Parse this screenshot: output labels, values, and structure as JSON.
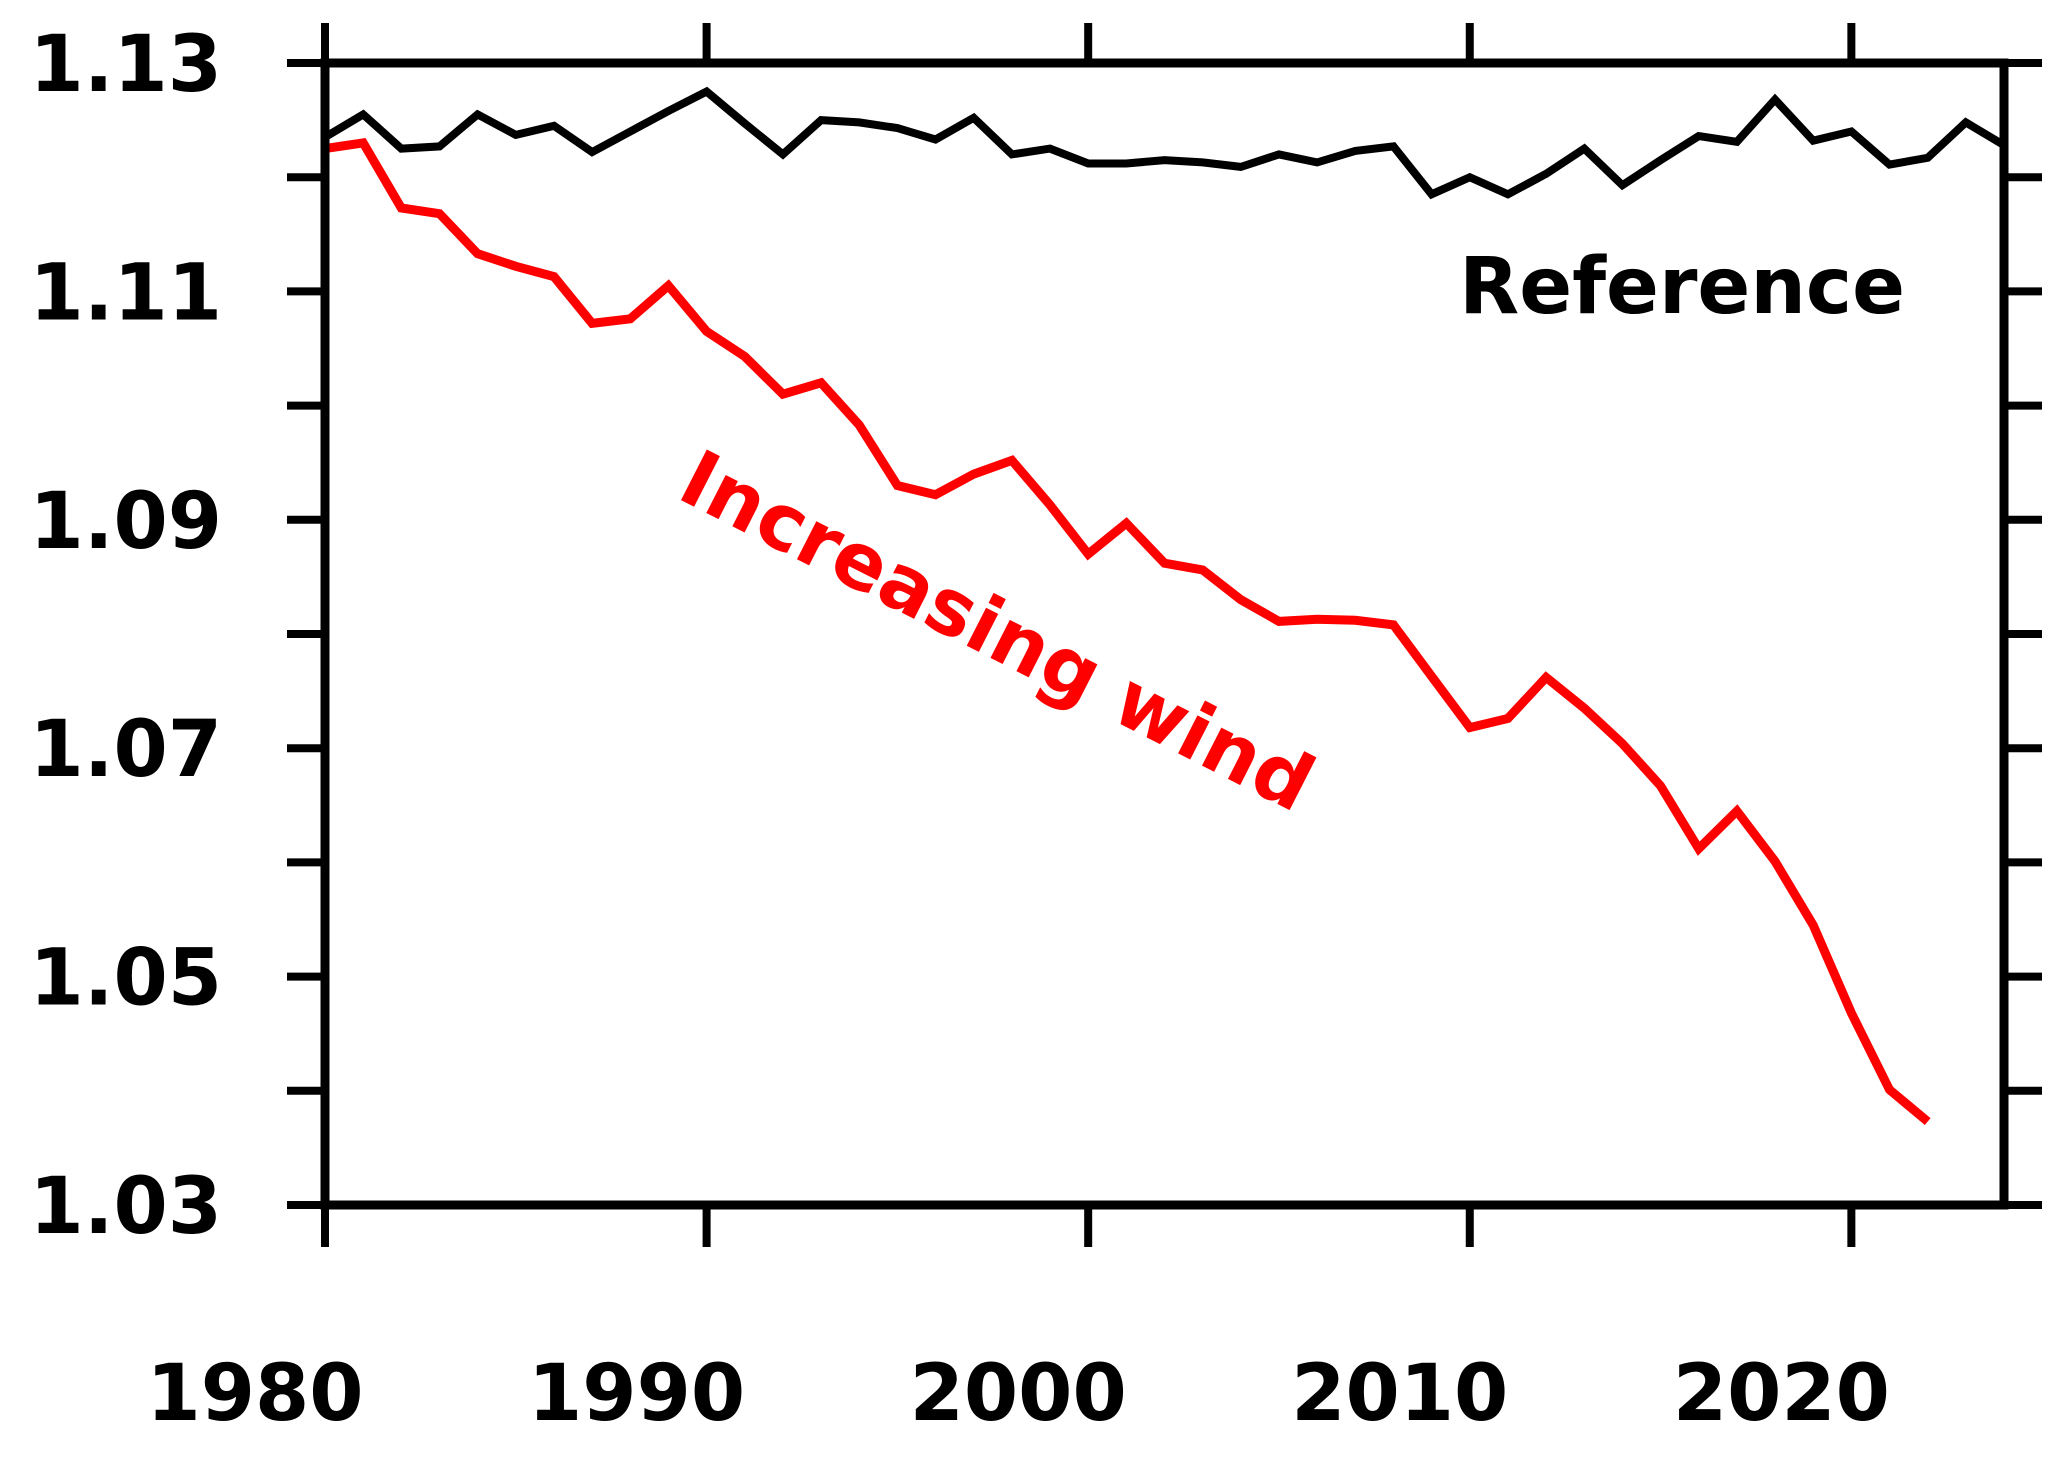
{
  "chart_data": {
    "type": "line",
    "title": "",
    "xlabel": "",
    "ylabel": "",
    "xlim": [
      1980,
      2024
    ],
    "ylim": [
      1.03,
      1.13
    ],
    "x_major_ticks": [
      1980,
      1990,
      2000,
      2010,
      2020
    ],
    "y_ticks": [
      1.03,
      1.04,
      1.05,
      1.06,
      1.07,
      1.08,
      1.09,
      1.1,
      1.11,
      1.12,
      1.13
    ],
    "y_tick_labels": [
      "1.03",
      "",
      "1.05",
      "",
      "1.07",
      "",
      "1.09",
      "",
      "1.11",
      "",
      "1.13"
    ],
    "x_tick_labels": [
      "1980",
      "1990",
      "2000",
      "2010",
      "2020"
    ],
    "grid": false,
    "legend": "none",
    "series": [
      {
        "name": "Reference",
        "color": "#000000",
        "x": [
          1980,
          1981,
          1982,
          1983,
          1984,
          1985,
          1986,
          1987,
          1988,
          1989,
          1990,
          1991,
          1992,
          1993,
          1994,
          1995,
          1996,
          1997,
          1998,
          1999,
          2000,
          2001,
          2002,
          2003,
          2004,
          2005,
          2006,
          2007,
          2008,
          2009,
          2010,
          2011,
          2012,
          2013,
          2014,
          2015,
          2016,
          2017,
          2018,
          2019,
          2020,
          2021,
          2022,
          2023,
          2024
        ],
        "values": [
          1.1235,
          1.1255,
          1.1225,
          1.1227,
          1.1255,
          1.1237,
          1.1245,
          1.1222,
          1.124,
          1.1258,
          1.1275,
          1.1247,
          1.122,
          1.125,
          1.1248,
          1.1243,
          1.1233,
          1.1252,
          1.122,
          1.1225,
          1.1212,
          1.1212,
          1.1215,
          1.1213,
          1.1209,
          1.122,
          1.1213,
          1.1223,
          1.1227,
          1.1185,
          1.12,
          1.1185,
          1.1203,
          1.1225,
          1.1193,
          1.1215,
          1.1236,
          1.1231,
          1.1268,
          1.1232,
          1.124,
          1.1211,
          1.1217,
          1.1248,
          1.1228
        ]
      },
      {
        "name": "Increasing wind",
        "color": "#ff0000",
        "x": [
          1980,
          1981,
          1982,
          1983,
          1984,
          1985,
          1986,
          1987,
          1988,
          1989,
          1990,
          1991,
          1992,
          1993,
          1994,
          1995,
          1996,
          1997,
          1998,
          1999,
          2000,
          2001,
          2002,
          2003,
          2004,
          2005,
          2006,
          2007,
          2008,
          2009,
          2010,
          2011,
          2012,
          2013,
          2014,
          2015,
          2016,
          2017,
          2018,
          2019,
          2020,
          2021,
          2022
        ],
        "values": [
          1.1225,
          1.123,
          1.1173,
          1.1168,
          1.1133,
          1.1122,
          1.1113,
          1.1072,
          1.1076,
          1.1105,
          1.1065,
          1.1043,
          1.101,
          1.102,
          1.0983,
          1.093,
          1.0922,
          1.094,
          1.0952,
          1.0913,
          1.087,
          1.0897,
          1.0862,
          1.0856,
          1.083,
          1.0811,
          1.0813,
          1.0812,
          1.0808,
          1.0763,
          1.0718,
          1.0726,
          1.0762,
          1.0735,
          1.0704,
          1.0667,
          1.0612,
          1.0645,
          1.0601,
          1.0545,
          1.0468,
          1.0401,
          1.0373
        ]
      }
    ],
    "annotations": [
      {
        "text": "Reference",
        "color": "#000000"
      },
      {
        "text": "Increasing wind",
        "color": "#ff0000"
      }
    ]
  }
}
